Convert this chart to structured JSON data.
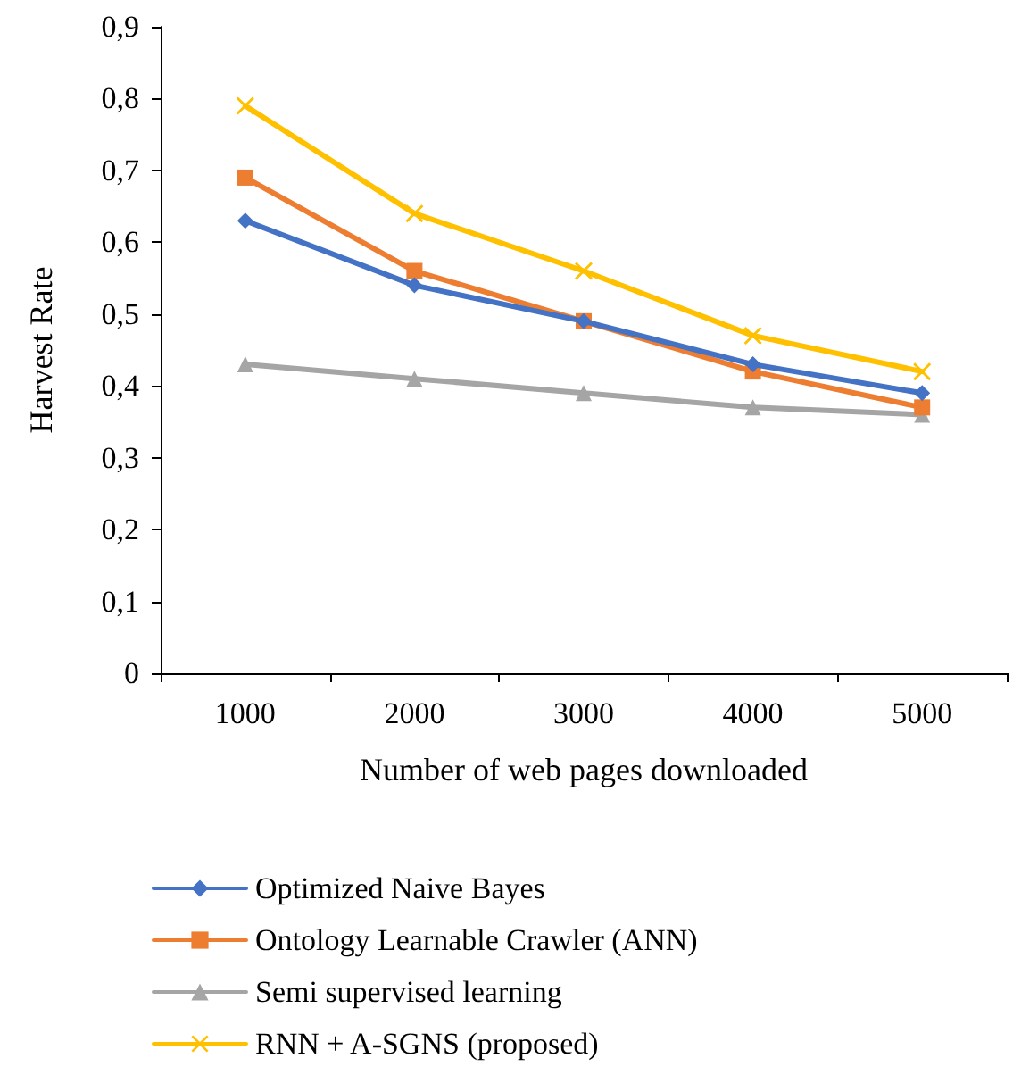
{
  "chart_data": {
    "type": "line",
    "xlabel": "Number of web pages downloaded",
    "ylabel": "Harvest Rate",
    "categories": [
      "1000",
      "2000",
      "3000",
      "4000",
      "5000"
    ],
    "series": [
      {
        "name": "Optimized Naive Bayes",
        "color": "#4472c4",
        "marker": "diamond",
        "values": [
          0.63,
          0.54,
          0.49,
          0.43,
          0.39
        ]
      },
      {
        "name": "Ontology Learnable Crawler (ANN)",
        "color": "#ed7d31",
        "marker": "square",
        "values": [
          0.69,
          0.56,
          0.49,
          0.42,
          0.37
        ]
      },
      {
        "name": "Semi supervised learning",
        "color": "#a5a5a5",
        "marker": "triangle",
        "values": [
          0.43,
          0.41,
          0.39,
          0.37,
          0.36
        ]
      },
      {
        "name": "RNN + A-SGNS (proposed)",
        "color": "#ffc000",
        "marker": "cross",
        "values": [
          0.79,
          0.64,
          0.56,
          0.47,
          0.42
        ]
      }
    ],
    "ylim": [
      0,
      0.9
    ],
    "yticks": [
      0,
      {
        "value": 0.1,
        "label": "0,1"
      },
      {
        "value": 0.2,
        "label": "0,2"
      },
      {
        "value": 0.3,
        "label": "0,3"
      },
      {
        "value": 0.4,
        "label": "0,4"
      },
      {
        "value": 0.5,
        "label": "0,5"
      },
      {
        "value": 0.6,
        "label": "0,6"
      },
      {
        "value": 0.7,
        "label": "0,7"
      },
      {
        "value": 0.8,
        "label": "0,8"
      },
      {
        "value": 0.9,
        "label": "0,9"
      }
    ],
    "grid": false,
    "legend": "bottom",
    "line_style": "solid"
  }
}
